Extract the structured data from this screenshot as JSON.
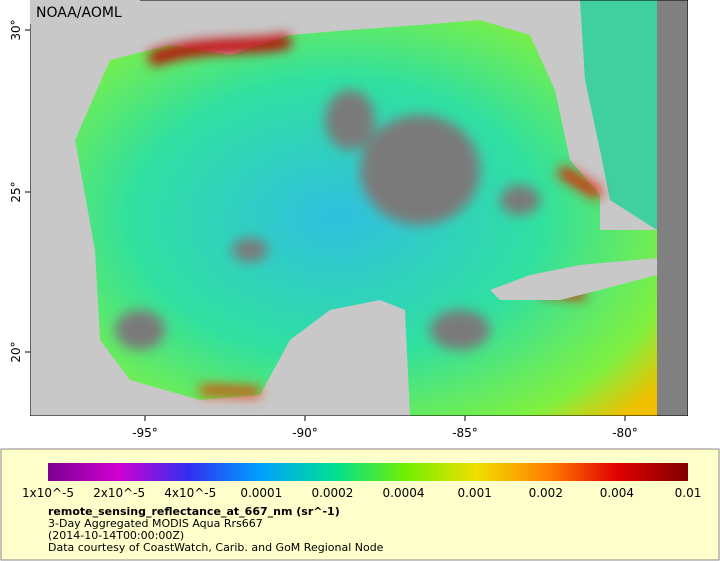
{
  "header": {
    "credit": "NOAA/AOML"
  },
  "map": {
    "lat_labels": [
      "30°",
      "25°",
      "20°"
    ],
    "lon_labels": [
      "-95°",
      "-90°",
      "-85°",
      "-80°"
    ]
  },
  "colorbar": {
    "labels": [
      "1x10^-5",
      "2x10^-5",
      "4x10^-5",
      "0.0001",
      "0.0002",
      "0.0004",
      "0.001",
      "0.002",
      "0.004",
      "0.01"
    ]
  },
  "caption": {
    "title": "remote_sensing_reflectance_at_667_nm (sr^-1)",
    "lines": [
      "3-Day Aggregated MODIS Aqua Rrs667",
      "(2014-10-14T00:00:00Z)",
      "Data courtesy of CoastWatch, Carib. and GoM Regional Node"
    ]
  }
}
